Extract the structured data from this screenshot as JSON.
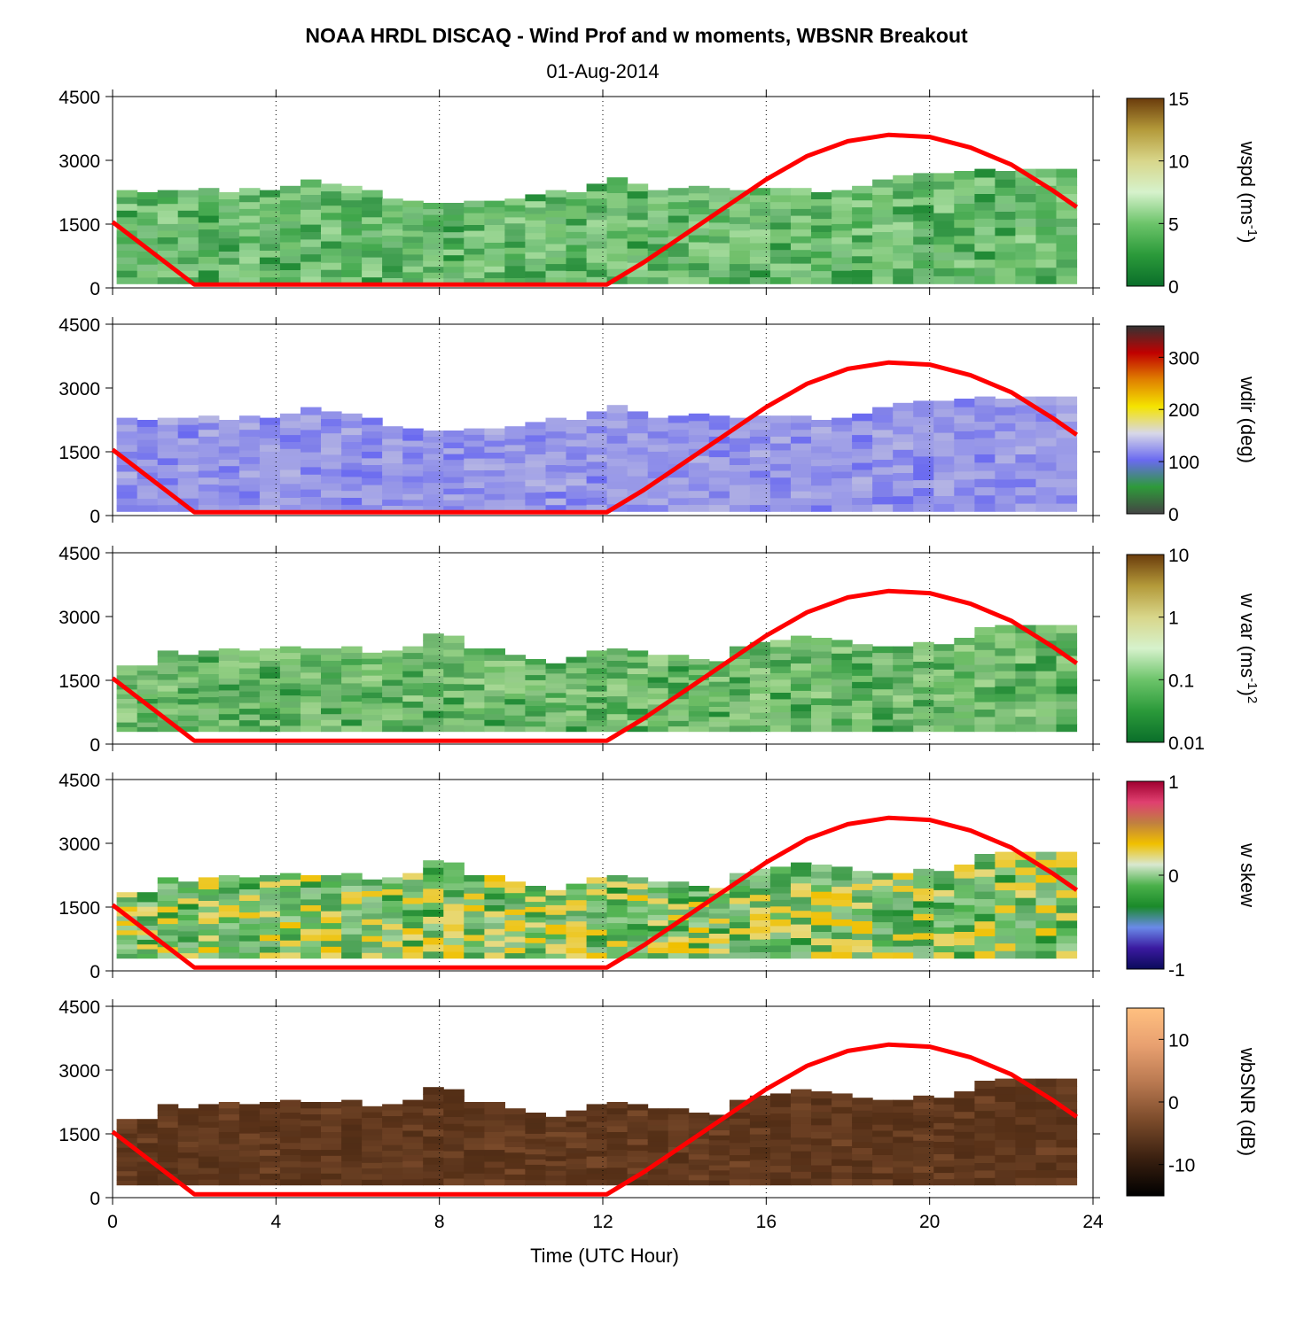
{
  "header": {
    "title": "NOAA HRDL DISCAQ - Wind Prof and w moments, WBSNR Breakout",
    "date": "01-Aug-2014"
  },
  "colors": {
    "boundary_layer_line": "#ff0000",
    "axes": "#000000",
    "background": "#ffffff"
  },
  "chart_data": {
    "type": "heatmap",
    "shared_x": {
      "label": "Time (UTC Hour)",
      "range": [
        0,
        24
      ],
      "ticks": [
        "0",
        "4",
        "8",
        "12",
        "16",
        "20",
        "24"
      ],
      "gridlines": [
        4,
        8,
        12,
        16,
        20
      ],
      "grid": "dotted vertical"
    },
    "shared_y": {
      "range": [
        0,
        4500
      ],
      "ticks": [
        "0",
        "1500",
        "3000",
        "4500"
      ]
    },
    "overlay_series": {
      "color": "#ff0000",
      "points": [
        [
          0,
          1550
        ],
        [
          2,
          80
        ],
        [
          12.1,
          80
        ],
        [
          13,
          600
        ],
        [
          14,
          1250
        ],
        [
          15,
          1900
        ],
        [
          16,
          2550
        ],
        [
          17,
          3100
        ],
        [
          18,
          3450
        ],
        [
          19,
          3600
        ],
        [
          20,
          3550
        ],
        [
          21,
          3300
        ],
        [
          22,
          2900
        ],
        [
          23,
          2300
        ],
        [
          23.6,
          1900
        ]
      ]
    },
    "panels": [
      {
        "id": "wspd",
        "colorbar_label": "wspd (ms-1)",
        "label_main": "wspd (ms",
        "label_sup": "-1",
        "label_tail": ")",
        "colorbar_ticks": [
          "0",
          "5",
          "10",
          "15"
        ],
        "colorbar_range": [
          0,
          15
        ],
        "colormap": [
          "#0a6e2a",
          "#2b9a3a",
          "#6cc46a",
          "#d6f2cc",
          "#d8d68a",
          "#b49a3a",
          "#6b3c0c"
        ],
        "cell_color_mix": {
          "base": [
            "#1f8a34",
            "#3fa64a",
            "#6fbf6a"
          ],
          "light": "#c9eec0"
        },
        "overlay_points": [
          [
            0,
            1550
          ],
          [
            2,
            80
          ],
          [
            12.1,
            80
          ],
          [
            13,
            600
          ],
          [
            14,
            1250
          ],
          [
            15,
            1900
          ],
          [
            16,
            2550
          ],
          [
            17,
            3100
          ],
          [
            18,
            3450
          ],
          [
            19,
            3600
          ],
          [
            20,
            3550
          ],
          [
            21,
            3300
          ],
          [
            22,
            2900
          ],
          [
            23,
            2300
          ],
          [
            23.6,
            1900
          ]
        ],
        "top_heights": [
          2300,
          2250,
          2300,
          2300,
          2350,
          2250,
          2350,
          2300,
          2400,
          2550,
          2450,
          2400,
          2300,
          2100,
          2050,
          2000,
          2000,
          2050,
          2050,
          2100,
          2200,
          2300,
          2250,
          2450,
          2600,
          2450,
          2300,
          2350,
          2400,
          2350,
          2300,
          2350,
          2350,
          2350,
          2250,
          2300,
          2400,
          2550,
          2650,
          2700,
          2700,
          2750,
          2800,
          2750,
          2800,
          2800,
          2800
        ],
        "bottom_height": 100
      },
      {
        "id": "wdir",
        "colorbar_label": "wdir (deg)",
        "label_main": "wdir (deg)",
        "label_sup": "",
        "label_tail": "",
        "colorbar_ticks": [
          "0",
          "100",
          "200",
          "300"
        ],
        "colorbar_range": [
          0,
          360
        ],
        "colormap": [
          "#444444",
          "#2e9a3a",
          "#6a6af0",
          "#d8d8e8",
          "#f5e400",
          "#e08000",
          "#c00000",
          "#333333"
        ],
        "cell_color_mix": {
          "base": [
            "#6a6af0",
            "#7a7aea",
            "#9090e8"
          ],
          "light": "#d0d0e0"
        },
        "overlay_points": [
          [
            0,
            1550
          ],
          [
            2,
            80
          ],
          [
            12.1,
            80
          ],
          [
            13,
            600
          ],
          [
            14,
            1250
          ],
          [
            15,
            1900
          ],
          [
            16,
            2550
          ],
          [
            17,
            3100
          ],
          [
            18,
            3450
          ],
          [
            19,
            3600
          ],
          [
            20,
            3550
          ],
          [
            21,
            3300
          ],
          [
            22,
            2900
          ],
          [
            23,
            2300
          ],
          [
            23.6,
            1900
          ]
        ],
        "top_heights": [
          2300,
          2250,
          2300,
          2300,
          2350,
          2250,
          2350,
          2300,
          2400,
          2550,
          2450,
          2400,
          2300,
          2100,
          2050,
          2000,
          2000,
          2050,
          2050,
          2100,
          2200,
          2300,
          2250,
          2450,
          2600,
          2450,
          2300,
          2350,
          2400,
          2350,
          2300,
          2350,
          2350,
          2350,
          2250,
          2300,
          2400,
          2550,
          2650,
          2700,
          2700,
          2750,
          2800,
          2750,
          2800,
          2800,
          2800
        ],
        "bottom_height": 100
      },
      {
        "id": "wvar",
        "colorbar_label": "w var (ms-1)2",
        "label_main": "w var (ms",
        "label_sup": "-1",
        "label_tail": ")",
        "label_sup2": "2",
        "colorbar_ticks": [
          "0.01",
          "0.1",
          "1",
          "10"
        ],
        "colorbar_range": [
          0.01,
          10
        ],
        "colorbar_scale": "log",
        "colormap": [
          "#0a6e2a",
          "#2b9a3a",
          "#6cc46a",
          "#d6f2cc",
          "#d8d68a",
          "#b49a3a",
          "#6b3c0c"
        ],
        "cell_color_mix": {
          "base": [
            "#1f8a34",
            "#3aa046",
            "#68bb62"
          ],
          "light": "#d4ecb8"
        },
        "overlay_points": [
          [
            0,
            1550
          ],
          [
            2,
            80
          ],
          [
            12.1,
            80
          ],
          [
            13,
            600
          ],
          [
            14,
            1250
          ],
          [
            15,
            1900
          ],
          [
            16,
            2550
          ],
          [
            17,
            3100
          ],
          [
            18,
            3450
          ],
          [
            19,
            3600
          ],
          [
            20,
            3550
          ],
          [
            21,
            3300
          ],
          [
            22,
            2900
          ],
          [
            23,
            2300
          ],
          [
            23.6,
            1900
          ]
        ],
        "top_heights": [
          1850,
          1850,
          2200,
          2100,
          2200,
          2250,
          2200,
          2250,
          2300,
          2250,
          2250,
          2300,
          2150,
          2200,
          2300,
          2600,
          2550,
          2250,
          2250,
          2100,
          2000,
          1900,
          2050,
          2200,
          2250,
          2200,
          2100,
          2100,
          2000,
          1950,
          2300,
          2400,
          2450,
          2550,
          2500,
          2450,
          2350,
          2300,
          2300,
          2400,
          2350,
          2500,
          2750,
          2800,
          2800,
          2800,
          2800
        ],
        "bottom_height": 300
      },
      {
        "id": "wskew",
        "colorbar_label": "w skew",
        "label_main": "w skew",
        "label_sup": "",
        "label_tail": "",
        "colorbar_ticks": [
          "-1",
          "0",
          "1"
        ],
        "colorbar_range": [
          -1,
          1
        ],
        "colormap": [
          "#0a0a5a",
          "#3a1aa0",
          "#6a8ae8",
          "#1a8a2a",
          "#4ab04a",
          "#d8e8d0",
          "#f0c000",
          "#c08040",
          "#e04070",
          "#a00030"
        ],
        "cell_color_mix": {
          "base": [
            "#1a8a2a",
            "#4ab04a",
            "#f0c000"
          ],
          "light": "#e0ecd8"
        },
        "overlay_points": [
          [
            0,
            1550
          ],
          [
            2,
            80
          ],
          [
            12.1,
            80
          ],
          [
            13,
            600
          ],
          [
            14,
            1250
          ],
          [
            15,
            1900
          ],
          [
            16,
            2550
          ],
          [
            17,
            3100
          ],
          [
            18,
            3450
          ],
          [
            19,
            3600
          ],
          [
            20,
            3550
          ],
          [
            21,
            3300
          ],
          [
            22,
            2900
          ],
          [
            23,
            2300
          ],
          [
            23.6,
            1900
          ]
        ],
        "top_heights": [
          1850,
          1850,
          2200,
          2100,
          2200,
          2250,
          2200,
          2250,
          2300,
          2250,
          2250,
          2300,
          2150,
          2200,
          2300,
          2600,
          2550,
          2250,
          2250,
          2100,
          2000,
          1900,
          2050,
          2200,
          2250,
          2200,
          2100,
          2100,
          2000,
          1950,
          2300,
          2400,
          2450,
          2550,
          2500,
          2450,
          2350,
          2300,
          2300,
          2400,
          2350,
          2500,
          2750,
          2800,
          2800,
          2800,
          2800
        ],
        "bottom_height": 300
      },
      {
        "id": "wbsnr",
        "colorbar_label": "wbSNR (dB)",
        "label_main": "wbSNR (dB)",
        "label_sup": "",
        "label_tail": "",
        "colorbar_ticks": [
          "-10",
          "0",
          "10"
        ],
        "colorbar_range": [
          -15,
          15
        ],
        "colormap": [
          "#000000",
          "#3a2010",
          "#7a4a2a",
          "#b87850",
          "#e8a070",
          "#ffc080"
        ],
        "cell_color_mix": {
          "base": [
            "#6a3e22",
            "#7a4a2a",
            "#5a3218"
          ],
          "light": "#4a2a14"
        },
        "overlay_points": [
          [
            0,
            1550
          ],
          [
            2,
            80
          ],
          [
            12.1,
            80
          ],
          [
            13,
            600
          ],
          [
            14,
            1250
          ],
          [
            15,
            1900
          ],
          [
            16,
            2550
          ],
          [
            17,
            3100
          ],
          [
            18,
            3450
          ],
          [
            19,
            3600
          ],
          [
            20,
            3550
          ],
          [
            21,
            3300
          ],
          [
            22,
            2900
          ],
          [
            23,
            2300
          ],
          [
            23.6,
            1900
          ]
        ],
        "top_heights": [
          1850,
          1850,
          2200,
          2100,
          2200,
          2250,
          2200,
          2250,
          2300,
          2250,
          2250,
          2300,
          2150,
          2200,
          2300,
          2600,
          2550,
          2250,
          2250,
          2100,
          2000,
          1900,
          2050,
          2200,
          2250,
          2200,
          2100,
          2100,
          2000,
          1950,
          2300,
          2400,
          2450,
          2550,
          2500,
          2450,
          2350,
          2300,
          2300,
          2400,
          2350,
          2500,
          2750,
          2800,
          2800,
          2800,
          2800
        ],
        "bottom_height": 300
      }
    ]
  }
}
